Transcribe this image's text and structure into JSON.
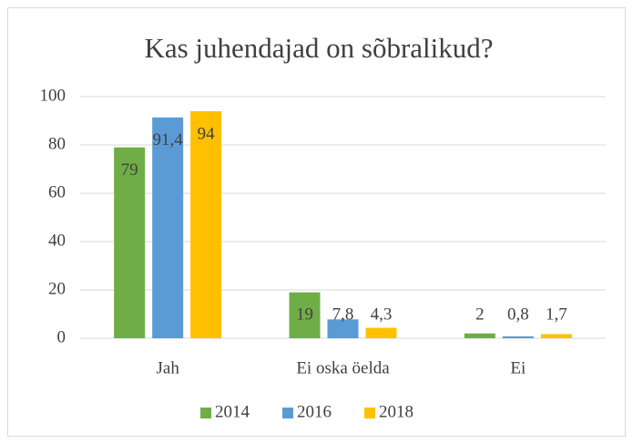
{
  "chart_data": {
    "type": "bar",
    "title": "Kas juhendajad on sõbralikud?",
    "categories": [
      "Jah",
      "Ei oska öelda",
      "Ei"
    ],
    "series": [
      {
        "name": "2014",
        "color": "#70ad47",
        "values": [
          79,
          19,
          2
        ],
        "value_labels": [
          "79",
          "19",
          "2"
        ]
      },
      {
        "name": "2016",
        "color": "#5b9bd5",
        "values": [
          91.4,
          7.8,
          0.8
        ],
        "value_labels": [
          "91,4",
          "7,8",
          "0,8"
        ]
      },
      {
        "name": "2018",
        "color": "#ffc000",
        "values": [
          94,
          4.3,
          1.7
        ],
        "value_labels": [
          "94",
          "4,3",
          "1,7"
        ]
      }
    ],
    "ylim": [
      0,
      100
    ],
    "yticks": [
      0,
      20,
      40,
      60,
      80,
      100
    ],
    "grid": true,
    "legend": "bottom"
  }
}
